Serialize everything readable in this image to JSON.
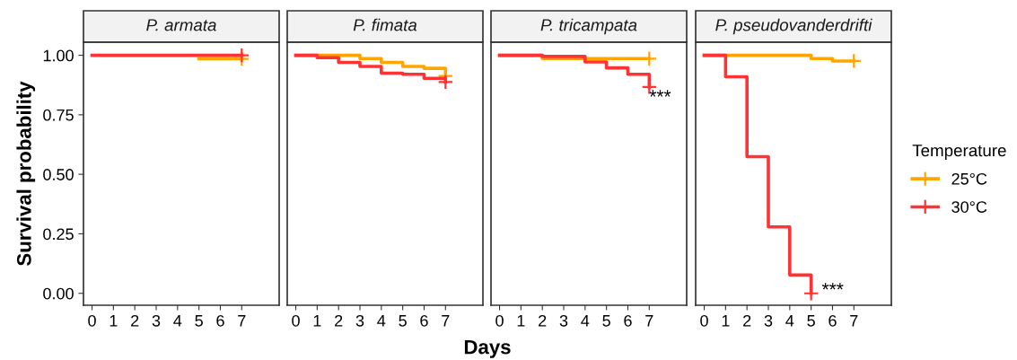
{
  "chart_data": [
    {
      "type": "step",
      "title": "P. armata",
      "ylabel": "Survival probability",
      "x": [
        0,
        1,
        2,
        3,
        4,
        5,
        6,
        7
      ],
      "xlim": [
        -0.4,
        8.75
      ],
      "xticks": [
        0,
        1,
        2,
        3,
        4,
        5,
        6,
        7
      ],
      "ylim": [
        -0.05,
        1.055
      ],
      "yticks": [
        {
          "value": 0,
          "label": "0.00"
        },
        {
          "value": 0.25,
          "label": "0.25"
        },
        {
          "value": 0.5,
          "label": "0.50"
        },
        {
          "value": 0.75,
          "label": "0.75"
        },
        {
          "value": 1,
          "label": "1.00"
        }
      ],
      "grid": false,
      "legend": "right",
      "legend_title": "Temperature",
      "series": [
        {
          "name": "25°C",
          "color": "#ffa500",
          "values": [
            null,
            null,
            null,
            null,
            null,
            0.985,
            0.985,
            0.985
          ]
        },
        {
          "name": "30°C",
          "color": "#ff3333",
          "values": [
            1,
            1,
            1,
            1,
            1,
            1,
            1,
            1
          ]
        }
      ]
    },
    {
      "type": "step",
      "title": "P. fimata",
      "xlabel": "Days",
      "x": [
        0,
        1,
        2,
        3,
        4,
        5,
        6,
        7
      ],
      "xlim": [
        -0.4,
        8.75
      ],
      "xticks": [
        0,
        1,
        2,
        3,
        4,
        5,
        6,
        7
      ],
      "ylim": [
        -0.05,
        1.055
      ],
      "tick_labels": "x",
      "grid": false,
      "series": [
        {
          "name": "25°C",
          "color": "#ffa500",
          "values": [
            1,
            1,
            1,
            0.986,
            0.97,
            0.953,
            0.945,
            0.913
          ]
        },
        {
          "name": "30°C",
          "color": "#ff3333",
          "values": [
            1,
            0.99,
            0.97,
            0.953,
            0.925,
            0.92,
            0.903,
            0.888
          ]
        }
      ]
    },
    {
      "type": "step",
      "title": "P. tricampata",
      "x": [
        0,
        1,
        2,
        3,
        4,
        5,
        6,
        7
      ],
      "xlim": [
        -0.4,
        8.75
      ],
      "xticks": [
        0,
        1,
        2,
        3,
        4,
        5,
        6,
        7
      ],
      "ylim": [
        -0.05,
        1.055
      ],
      "tick_labels": "x",
      "grid": false,
      "annotations": [
        {
          "text": "***",
          "x": 7,
          "y": 0.82
        }
      ],
      "series": [
        {
          "name": "25°C",
          "color": "#ffa500",
          "values": [
            1,
            1,
            0.986,
            0.986,
            0.986,
            0.986,
            0.986,
            0.986
          ]
        },
        {
          "name": "30°C",
          "color": "#ff3333",
          "values": [
            1,
            1,
            0.995,
            0.995,
            0.972,
            0.947,
            0.92,
            0.867
          ]
        }
      ]
    },
    {
      "type": "step",
      "title": "P. pseudovanderdrifti",
      "x": [
        0,
        1,
        2,
        3,
        4,
        5,
        6,
        7
      ],
      "xlim": [
        -0.4,
        8.75
      ],
      "xticks": [
        0,
        1,
        2,
        3,
        4,
        5,
        6,
        7
      ],
      "ylim": [
        -0.05,
        1.055
      ],
      "tick_labels": "x",
      "grid": false,
      "annotations": [
        {
          "text": "***",
          "x": 5.5,
          "y": 0.01
        }
      ],
      "series": [
        {
          "name": "25°C",
          "color": "#ffa500",
          "values": [
            1,
            1,
            1,
            1,
            1,
            0.986,
            0.976,
            0.976
          ]
        },
        {
          "name": "30°C",
          "color": "#ff3333",
          "values": [
            1,
            0.91,
            0.574,
            0.279,
            0.077,
            0.0,
            null,
            null
          ]
        }
      ]
    }
  ]
}
